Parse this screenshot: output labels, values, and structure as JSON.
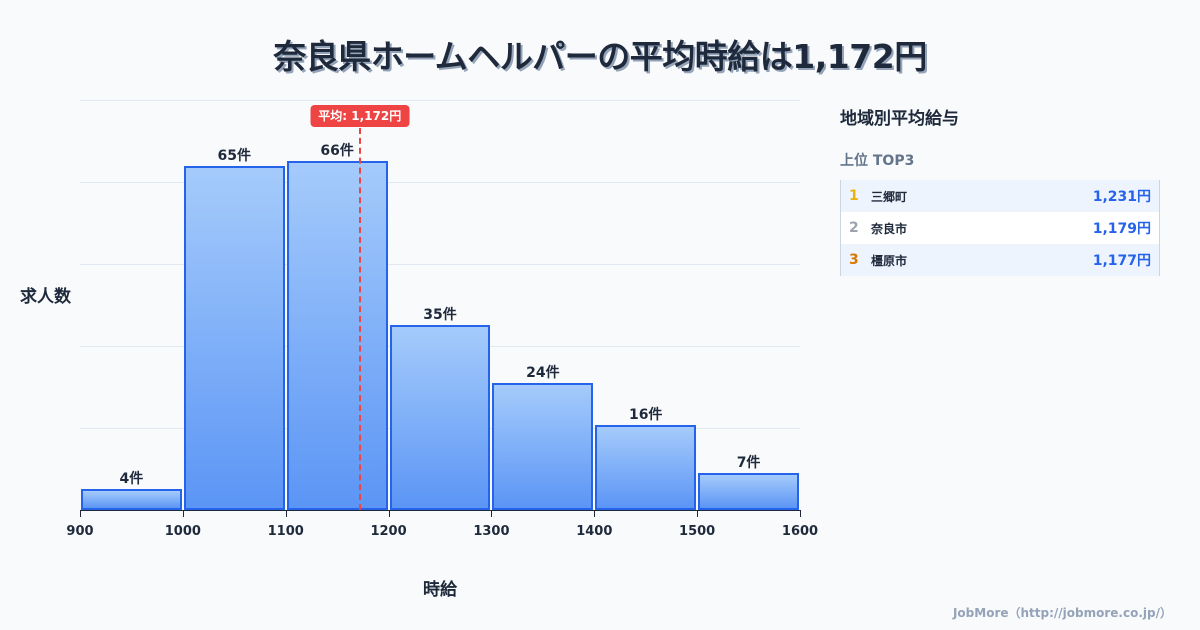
{
  "title": "奈良県ホームヘルパーの平均時給は1,172円",
  "chart_data": {
    "type": "bar",
    "title": "奈良県ホームヘルパーの平均時給は1,172円",
    "xlabel": "時給",
    "ylabel": "求人数",
    "bins": [
      [
        900,
        1000
      ],
      [
        1000,
        1100
      ],
      [
        1100,
        1200
      ],
      [
        1200,
        1300
      ],
      [
        1300,
        1400
      ],
      [
        1400,
        1500
      ],
      [
        1500,
        1600
      ]
    ],
    "categories": [
      "900-1000",
      "1000-1100",
      "1100-1200",
      "1200-1300",
      "1300-1400",
      "1400-1500",
      "1500-1600"
    ],
    "values": [
      4,
      65,
      66,
      35,
      24,
      16,
      7
    ],
    "value_labels": [
      "4件",
      "65件",
      "66件",
      "35件",
      "24件",
      "16件",
      "7件"
    ],
    "x_ticks": [
      "900",
      "1000",
      "1100",
      "1200",
      "1300",
      "1400",
      "1500",
      "1600"
    ],
    "xlim": [
      900,
      1600
    ],
    "ylim": [
      0,
      77.5
    ],
    "grid": true,
    "annotations": [
      {
        "type": "vline",
        "x": 1172,
        "label": "平均: 1,172円",
        "color": "#ef4444"
      }
    ],
    "bar_color": "#5b95f5",
    "bar_border_color": "#2563eb"
  },
  "axis": {
    "ylabel": "求人数",
    "xlabel": "時給",
    "ticks": [
      "900",
      "1000",
      "1100",
      "1200",
      "1300",
      "1400",
      "1500",
      "1600"
    ]
  },
  "bars": [
    {
      "label": "4件"
    },
    {
      "label": "65件"
    },
    {
      "label": "66件"
    },
    {
      "label": "35件"
    },
    {
      "label": "24件"
    },
    {
      "label": "16件"
    },
    {
      "label": "7件"
    }
  ],
  "average": {
    "label": "平均: 1,172円",
    "value": 1172
  },
  "panel": {
    "title": "地域別平均給与",
    "subtitle": "上位 TOP3",
    "rows": [
      {
        "rank": "1",
        "name": "三郷町",
        "value": "1,231円",
        "rank_color": "#eab308"
      },
      {
        "rank": "2",
        "name": "奈良市",
        "value": "1,179円",
        "rank_color": "#9ca3af"
      },
      {
        "rank": "3",
        "name": "橿原市",
        "value": "1,177円",
        "rank_color": "#d97706"
      }
    ]
  },
  "footer": "JobMore（http://jobmore.co.jp/）"
}
